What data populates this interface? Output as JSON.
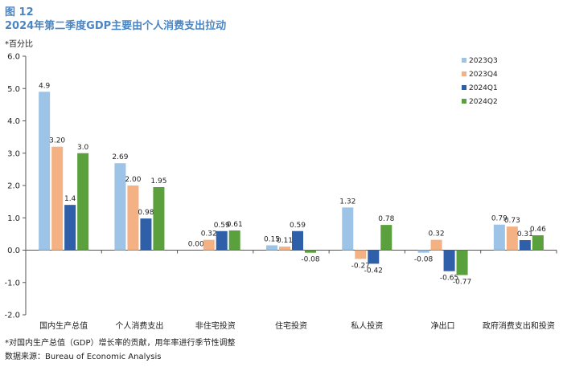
{
  "figure": {
    "label": "图 12",
    "title": "2024年第二季度GDP主要由个人消费支出拉动",
    "unit": "*百分比",
    "footnote": "*对国内生产总值（GDP）增长率的贡献，用年率进行季节性调整",
    "source": "数据来源：Bureau of Economic Analysis"
  },
  "chart_data": {
    "type": "bar",
    "categories": [
      "国内生产总值",
      "个人消费支出",
      "非住宅投资",
      "住宅投资",
      "私人投资",
      "净出口",
      "政府消费支出和投资"
    ],
    "series": [
      {
        "name": "2023Q3",
        "color": "#9dc3e6",
        "values": [
          4.9,
          2.69,
          0.0,
          0.15,
          1.32,
          -0.08,
          0.79
        ],
        "labels": [
          "4.9",
          "2.69",
          "0.00",
          "0.15",
          "1.32",
          "-0.08",
          "0.79"
        ]
      },
      {
        "name": "2023Q4",
        "color": "#f4b183",
        "values": [
          3.2,
          2.0,
          0.32,
          0.11,
          -0.27,
          0.32,
          0.73
        ],
        "labels": [
          "3.20",
          "2.00",
          "0.32",
          "0.11",
          "-0.27",
          "0.32",
          "0.73"
        ]
      },
      {
        "name": "2024Q1",
        "color": "#2e5fa8",
        "values": [
          1.4,
          0.98,
          0.59,
          0.59,
          -0.42,
          -0.65,
          0.31
        ],
        "labels": [
          "1.4",
          "0.98",
          "0.59",
          "0.59",
          "-0.42",
          "-0.65",
          "0.31"
        ]
      },
      {
        "name": "2024Q2",
        "color": "#5aa03c",
        "values": [
          3.0,
          1.95,
          0.61,
          -0.08,
          0.78,
          -0.77,
          0.46
        ],
        "labels": [
          "3.0",
          "1.95",
          "0.61",
          "-0.08",
          "0.78",
          "-0.77",
          "0.46"
        ]
      }
    ],
    "yticks": [
      "6.0",
      "5.0",
      "4.0",
      "3.0",
      "2.0",
      "1.0",
      "0.0",
      "-1.0",
      "-2.0"
    ],
    "ylim": [
      -2.0,
      6.0
    ],
    "legend_position": "top-right",
    "grid": false
  }
}
